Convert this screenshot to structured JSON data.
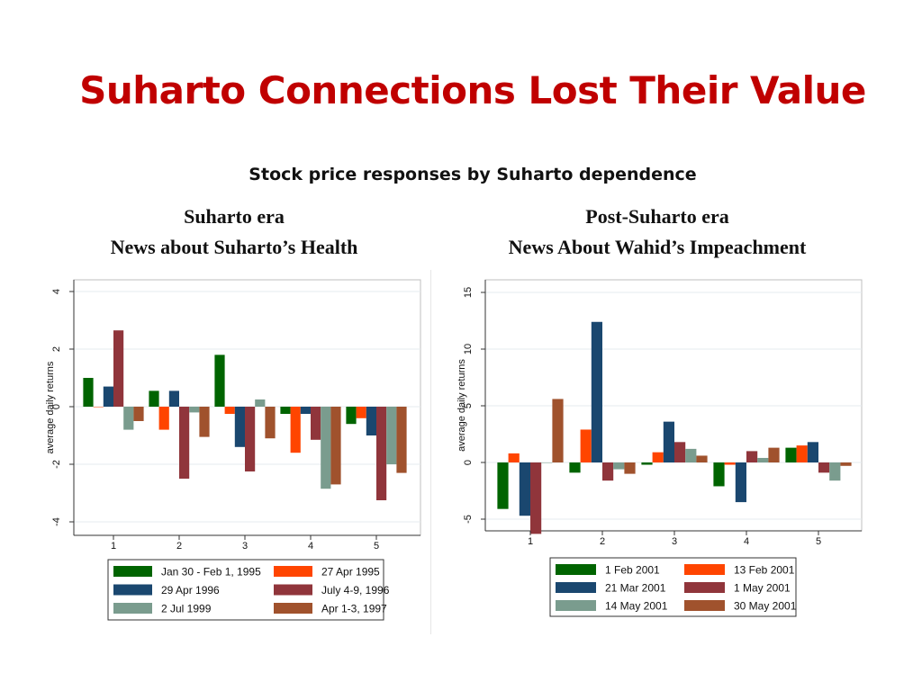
{
  "slide": {
    "title": "Suharto Connections Lost Their Value",
    "subtitle": "Stock price responses by Suharto dependence"
  },
  "panels": [
    {
      "line1": "Suharto era",
      "line2": "News about Suharto’s Health"
    },
    {
      "line1": "Post-Suharto era",
      "line2": "News About Wahid’s Impeachment"
    }
  ],
  "chart_data": [
    {
      "type": "bar",
      "title": "",
      "xlabel": "",
      "ylabel": "average daily returns",
      "categories": [
        "1",
        "2",
        "3",
        "4",
        "5"
      ],
      "ylim": [
        -4,
        4
      ],
      "yticks": [
        -4,
        -2,
        0,
        2,
        4
      ],
      "grid": true,
      "legend": "below",
      "series": [
        {
          "name": "Jan 30 - Feb 1, 1995",
          "color": "#006400",
          "values": [
            1.0,
            0.55,
            1.8,
            -0.25,
            -0.6
          ]
        },
        {
          "name": "27 Apr 1995",
          "color": "#ff4500",
          "values": [
            0.0,
            -0.8,
            -0.25,
            -1.6,
            -0.4
          ]
        },
        {
          "name": "29 Apr 1996",
          "color": "#1a476f",
          "values": [
            0.7,
            0.55,
            -1.4,
            -0.25,
            -1.0
          ]
        },
        {
          "name": "July 4-9, 1996",
          "color": "#90353b",
          "values": [
            2.65,
            -2.5,
            -2.25,
            -1.15,
            -3.25
          ]
        },
        {
          "name": "2 Jul 1999",
          "color": "#7a9c8e",
          "values": [
            -0.8,
            -0.2,
            0.25,
            -2.85,
            -2.0
          ]
        },
        {
          "name": "Apr 1-3, 1997",
          "color": "#a0522d",
          "values": [
            -0.5,
            -1.05,
            -1.1,
            -2.7,
            -2.3
          ]
        }
      ]
    },
    {
      "type": "bar",
      "title": "",
      "xlabel": "",
      "ylabel": "average daily returns",
      "categories": [
        "1",
        "2",
        "3",
        "4",
        "5"
      ],
      "ylim": [
        -7.5,
        16
      ],
      "yticks": [
        -5,
        0,
        5,
        10,
        15
      ],
      "grid": true,
      "legend": "below",
      "series": [
        {
          "name": "1 Feb 2001",
          "color": "#006400",
          "values": [
            -4.1,
            -0.9,
            -0.2,
            -2.1,
            1.3
          ]
        },
        {
          "name": "13 Feb 2001",
          "color": "#ff4500",
          "values": [
            0.8,
            2.9,
            0.9,
            -0.2,
            1.5
          ]
        },
        {
          "name": "21 Mar 2001",
          "color": "#1a476f",
          "values": [
            -4.7,
            12.4,
            3.6,
            -3.5,
            1.8
          ]
        },
        {
          "name": "1 May 2001",
          "color": "#90353b",
          "values": [
            -6.3,
            -1.6,
            1.8,
            1.0,
            -0.9
          ]
        },
        {
          "name": "14 May 2001",
          "color": "#7a9c8e",
          "values": [
            0.0,
            -0.6,
            1.2,
            0.4,
            -1.6
          ]
        },
        {
          "name": "30 May 2001",
          "color": "#a0522d",
          "values": [
            5.6,
            -1.0,
            0.6,
            1.3,
            -0.3
          ]
        }
      ]
    }
  ]
}
